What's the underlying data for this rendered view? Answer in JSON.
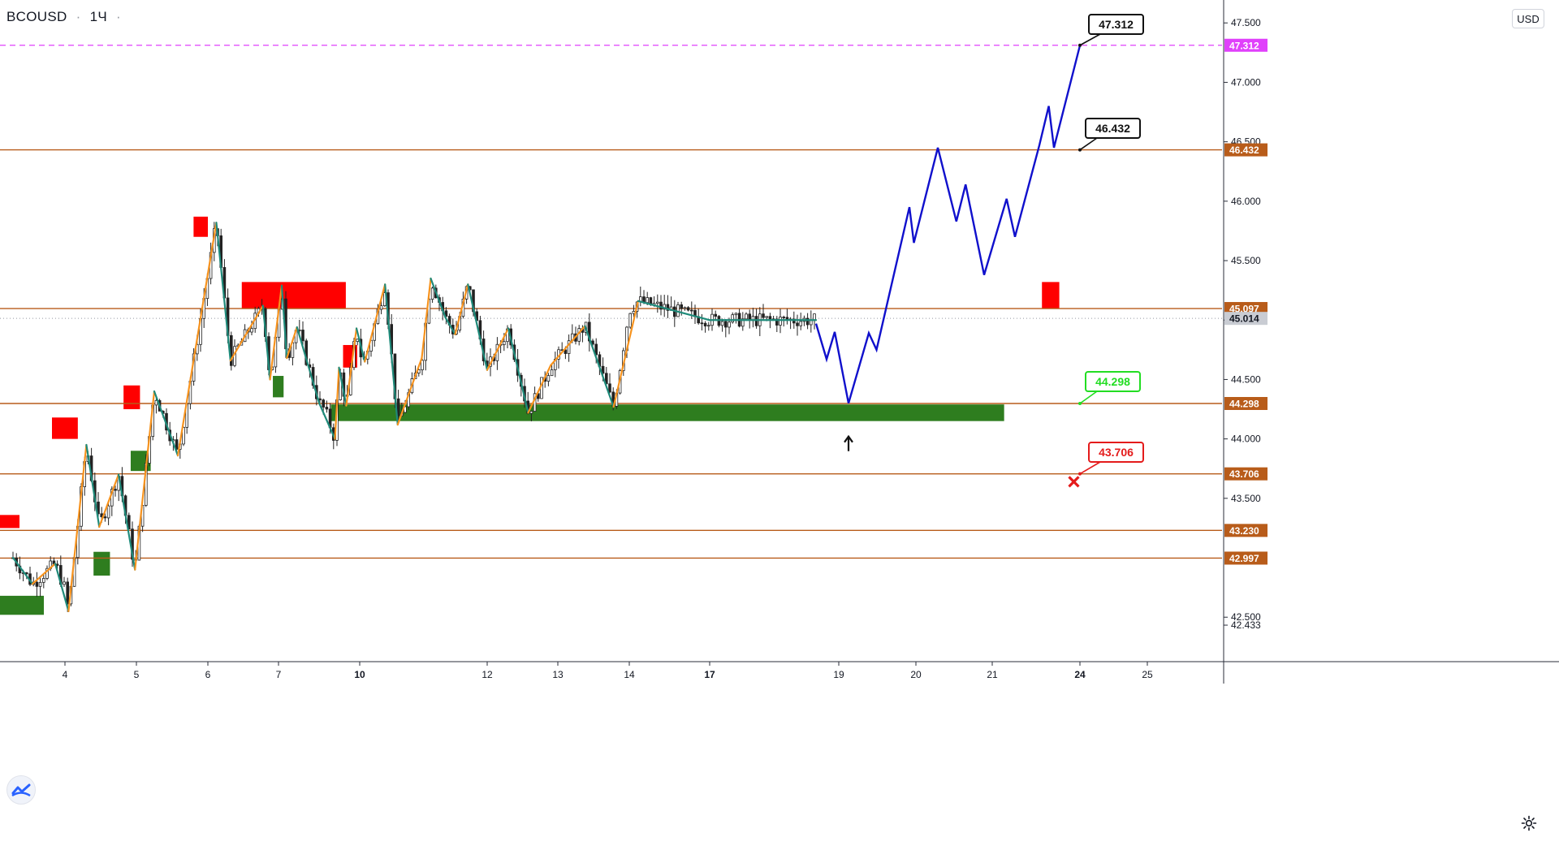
{
  "header": {
    "symbol": "BCOUSD",
    "interval": "1Ч",
    "separator": "·",
    "currency": "USD"
  },
  "colors": {
    "level_line": "#b85c1a",
    "target_line": "#e040fb",
    "target_label_bg": "#e040fb",
    "level_label_bg": "#b85c1a",
    "last_price_bg": "#c9ccd3",
    "supply_zone": "#ff0000",
    "demand_zone": "#2e7d1f",
    "forecast_path": "#1010cc",
    "zigzag_up": "#f7931e",
    "zigzag_down": "#1f8a7a",
    "candle": "#222222",
    "callout_black": "#111111",
    "callout_green": "#22dd22",
    "callout_red": "#e41b1b"
  },
  "chart_data": {
    "type": "line",
    "title": "",
    "xlabel": "",
    "ylabel": "",
    "ylim": [
      42.4,
      47.65
    ],
    "y_ticks": [
      "47.500",
      "47.000",
      "46.500",
      "46.000",
      "45.500",
      "45.000",
      "44.500",
      "44.000",
      "43.500",
      "42.500",
      "42.433"
    ],
    "x_ticks": [
      {
        "label": "4",
        "bold": false,
        "day": 4
      },
      {
        "label": "5",
        "bold": false,
        "day": 5
      },
      {
        "label": "6",
        "bold": false,
        "day": 6
      },
      {
        "label": "7",
        "bold": false,
        "day": 7
      },
      {
        "label": "10",
        "bold": true,
        "day": 10
      },
      {
        "label": "12",
        "bold": false,
        "day": 12
      },
      {
        "label": "13",
        "bold": false,
        "day": 13
      },
      {
        "label": "14",
        "bold": false,
        "day": 14
      },
      {
        "label": "17",
        "bold": true,
        "day": 17
      },
      {
        "label": "19",
        "bold": false,
        "day": 19
      },
      {
        "label": "20",
        "bold": false,
        "day": 20
      },
      {
        "label": "21",
        "bold": false,
        "day": 21
      },
      {
        "label": "24",
        "bold": true,
        "day": 24
      },
      {
        "label": "25",
        "bold": false,
        "day": 25
      }
    ],
    "levels": [
      {
        "label": "47.312",
        "value": 47.312,
        "style": "target"
      },
      {
        "label": "46.432",
        "value": 46.432,
        "style": "level"
      },
      {
        "label": "45.097",
        "value": 45.097,
        "style": "level"
      },
      {
        "label": "45.014",
        "value": 45.014,
        "style": "last"
      },
      {
        "label": "44.298",
        "value": 44.298,
        "style": "level"
      },
      {
        "label": "43.706",
        "value": 43.706,
        "style": "level"
      },
      {
        "label": "43.230",
        "value": 43.23,
        "style": "level"
      },
      {
        "label": "42.997",
        "value": 42.997,
        "style": "level"
      }
    ],
    "supply_zones": [
      {
        "x": [
          3.6,
          3.72
        ],
        "y": [
          43.25,
          43.36
        ]
      },
      {
        "x": [
          3.92,
          4.18
        ],
        "y": [
          44.0,
          44.18
        ]
      },
      {
        "x": [
          4.82,
          5.05
        ],
        "y": [
          44.25,
          44.45
        ]
      },
      {
        "x": [
          5.8,
          6.0
        ],
        "y": [
          45.7,
          45.87
        ]
      },
      {
        "x": [
          6.48,
          9.05
        ],
        "y": [
          45.1,
          45.32
        ]
      },
      {
        "x": [
          8.9,
          9.83
        ],
        "y": [
          44.6,
          44.79
        ]
      },
      {
        "x": [
          17.15,
          17.45
        ],
        "y": [
          45.1,
          45.32
        ]
      }
    ],
    "demand_zones": [
      {
        "x": [
          3.6,
          3.87
        ],
        "y": [
          42.52,
          42.68
        ]
      },
      {
        "x": [
          4.4,
          4.63
        ],
        "y": [
          42.85,
          43.05
        ]
      },
      {
        "x": [
          4.92,
          5.2
        ],
        "y": [
          43.73,
          43.9
        ]
      },
      {
        "x": [
          6.92,
          7.11
        ],
        "y": [
          44.35,
          44.53
        ]
      },
      {
        "x": [
          8.3,
          16.59
        ],
        "y": [
          44.15,
          44.29
        ]
      }
    ],
    "zigzag": [
      [
        3.68,
        43.0
      ],
      [
        3.8,
        42.78
      ],
      [
        3.94,
        42.95
      ],
      [
        4.05,
        42.55
      ],
      [
        4.3,
        43.95
      ],
      [
        4.48,
        43.26
      ],
      [
        4.75,
        43.7
      ],
      [
        4.98,
        42.9
      ],
      [
        5.25,
        44.4
      ],
      [
        5.58,
        43.86
      ],
      [
        6.12,
        45.82
      ],
      [
        6.32,
        44.66
      ],
      [
        6.78,
        45.12
      ],
      [
        6.88,
        44.5
      ],
      [
        7.07,
        45.29
      ],
      [
        7.18,
        44.68
      ],
      [
        7.4,
        44.94
      ],
      [
        7.88,
        44.3
      ],
      [
        8.5,
        44.0
      ],
      [
        8.7,
        44.6
      ],
      [
        9.08,
        44.28
      ],
      [
        9.78,
        44.93
      ],
      [
        10.08,
        44.65
      ],
      [
        10.4,
        45.3
      ],
      [
        10.6,
        44.12
      ],
      [
        10.98,
        44.68
      ],
      [
        11.12,
        45.35
      ],
      [
        11.35,
        45.02
      ],
      [
        11.5,
        44.88
      ],
      [
        11.7,
        45.3
      ],
      [
        12.0,
        44.58
      ],
      [
        12.3,
        44.93
      ],
      [
        12.58,
        44.22
      ],
      [
        12.9,
        44.62
      ],
      [
        13.38,
        44.95
      ],
      [
        13.78,
        44.27
      ],
      [
        14.02,
        45.16
      ],
      [
        14.18,
        45.0
      ],
      [
        14.42,
        45.0
      ]
    ],
    "forecast": [
      [
        14.42,
        44.97
      ],
      [
        14.55,
        44.67
      ],
      [
        14.65,
        44.9
      ],
      [
        14.82,
        44.3
      ],
      [
        15.05,
        44.89
      ],
      [
        15.12,
        44.75
      ],
      [
        15.42,
        45.95
      ],
      [
        15.48,
        45.65
      ],
      [
        15.8,
        46.45
      ],
      [
        16.02,
        45.83
      ],
      [
        16.13,
        46.14
      ],
      [
        16.35,
        45.38
      ],
      [
        16.62,
        46.02
      ],
      [
        16.72,
        45.7
      ],
      [
        17.1,
        46.47
      ],
      [
        17.28,
        46.8
      ],
      [
        17.38,
        46.45
      ],
      [
        17.72,
        47.31
      ]
    ],
    "callouts": [
      {
        "label": "47.312",
        "style": "black",
        "value": 47.312,
        "day": 17.72
      },
      {
        "label": "46.432",
        "style": "black",
        "value": 46.432,
        "day": 17.72
      },
      {
        "label": "44.298",
        "style": "green",
        "value": 44.298,
        "day": 17.72
      },
      {
        "label": "43.706",
        "style": "red",
        "value": 43.706,
        "day": 17.72
      }
    ],
    "up_arrow": {
      "day": 14.82,
      "value": 44.02
    },
    "stop_mark": {
      "day": 17.64,
      "value": 43.64
    },
    "grid": false,
    "legend": "none"
  }
}
